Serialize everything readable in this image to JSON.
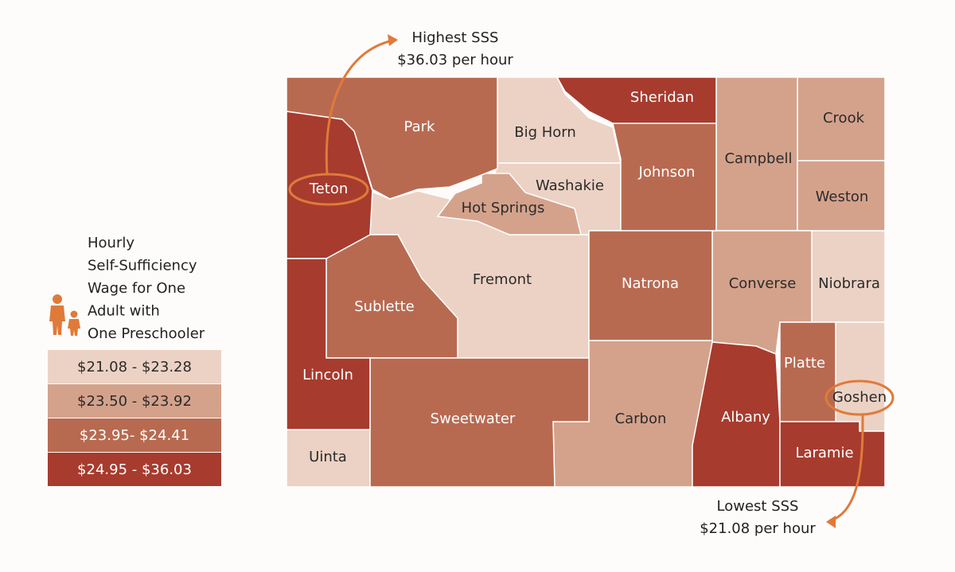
{
  "legend": {
    "title_lines": [
      "Hourly",
      "Self-Sufficiency",
      "Wage for One",
      "Adult with",
      "One Preschooler"
    ],
    "items": [
      {
        "label": "$21.08 - $23.28",
        "color": "#ecd2c4",
        "counties": [
          "Big Horn",
          "Washakie",
          "Fremont",
          "Niobrara",
          "Goshen",
          "Uinta"
        ]
      },
      {
        "label": "$23.50 - $23.92",
        "color": "#d4a28b",
        "counties": [
          "Crook",
          "Campbell",
          "Weston",
          "Hot Springs",
          "Converse",
          "Carbon"
        ]
      },
      {
        "label": "$23.95- $24.41",
        "color": "#b86a51",
        "counties": [
          "Park",
          "Johnson",
          "Natrona",
          "Sublette",
          "Sweetwater",
          "Platte"
        ]
      },
      {
        "label": "$24.95 - $36.03",
        "color": "#a73b2e",
        "counties": [
          "Sheridan",
          "Teton",
          "Lincoln",
          "Albany",
          "Laramie"
        ]
      }
    ]
  },
  "annotations": [
    {
      "lines": [
        "Highest SSS",
        "$36.03 per hour"
      ]
    },
    {
      "lines": [
        "Lowest SSS",
        "$21.08 per hour"
      ]
    }
  ]
}
